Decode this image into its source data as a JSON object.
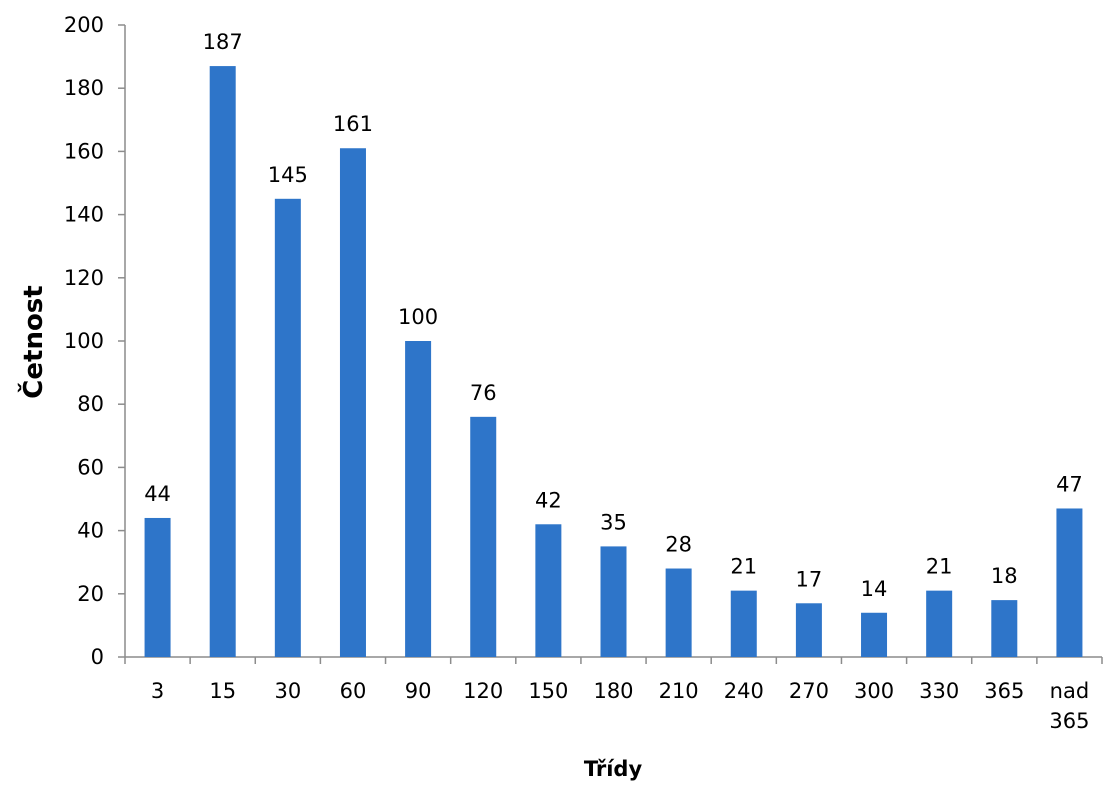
{
  "chart_data": {
    "type": "bar",
    "categories": [
      "3",
      "15",
      "30",
      "60",
      "90",
      "120",
      "150",
      "180",
      "210",
      "240",
      "270",
      "300",
      "330",
      "365",
      "nad 365"
    ],
    "values": [
      44,
      187,
      145,
      161,
      100,
      76,
      42,
      35,
      28,
      21,
      17,
      14,
      21,
      18,
      47
    ],
    "title": "",
    "xlabel": "Třídy",
    "ylabel": "Četnost",
    "ylim": [
      0,
      200
    ],
    "yticks": [
      0,
      20,
      40,
      60,
      80,
      100,
      120,
      140,
      160,
      180,
      200
    ],
    "grid": false,
    "legend": "none",
    "data_labels": true,
    "bar_color": "#2E75C9"
  }
}
